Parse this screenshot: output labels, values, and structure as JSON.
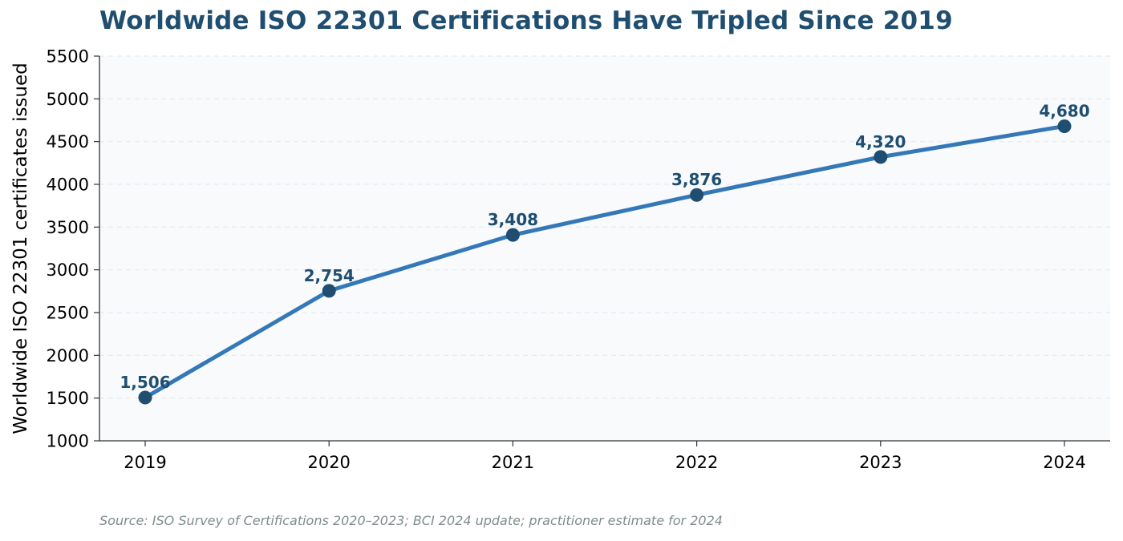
{
  "chart_data": {
    "type": "line",
    "title": "Worldwide ISO 22301 Certifications Have Tripled Since 2019",
    "xlabel": "",
    "ylabel": "Worldwide ISO 22301 certificates issued",
    "categories": [
      "2019",
      "2020",
      "2021",
      "2022",
      "2023",
      "2024"
    ],
    "series": [
      {
        "values": [
          1506,
          2754,
          3408,
          3876,
          4320,
          4680
        ]
      }
    ],
    "data_labels": [
      "1,506",
      "2,754",
      "3,408",
      "3,876",
      "4,320",
      "4,680"
    ],
    "ylim": [
      1000,
      5500
    ],
    "yticks": [
      1000,
      1500,
      2000,
      2500,
      3000,
      3500,
      4000,
      4500,
      5000,
      5500
    ],
    "grid": "horizontal-dashed",
    "legend": "none",
    "colors": {
      "line": "#3478b8",
      "marker": "#1f4e70",
      "data_label": "#1f4e70",
      "title": "#1f4e70",
      "plot_background": "#f8fafc",
      "grid": "#e6e9ee"
    },
    "source_note": "Source: ISO Survey of Certifications 2020–2023; BCI 2024 update; practitioner estimate for 2024"
  }
}
